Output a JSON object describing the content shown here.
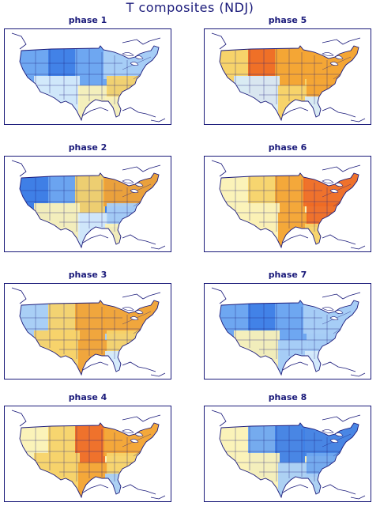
{
  "title": "T composites (NDJ)",
  "palette": {
    "deep_blue": "#3f7fe6",
    "blue": "#6ea6f0",
    "light_blue": "#a9cff5",
    "pale_blue": "#d7ecfb",
    "pale_yellow": "#fbf2b8",
    "yellow": "#f7d36a",
    "orange": "#f3a333",
    "red_orange": "#ee6a24",
    "line": "#1a1a7a"
  },
  "panels": [
    {
      "label": "phase 1",
      "pattern": [
        "blue",
        "deep_blue",
        "blue",
        "light_blue",
        "pale_blue",
        "pale_yellow",
        "yellow",
        "pale_yellow"
      ]
    },
    {
      "label": "phase 2",
      "pattern": [
        "deep_blue",
        "blue",
        "yellow",
        "orange",
        "pale_yellow",
        "pale_blue",
        "light_blue",
        "pale_yellow"
      ]
    },
    {
      "label": "phase 3",
      "pattern": [
        "light_blue",
        "yellow",
        "orange",
        "orange",
        "yellow",
        "orange",
        "yellow",
        "pale_blue"
      ]
    },
    {
      "label": "phase 4",
      "pattern": [
        "pale_yellow",
        "yellow",
        "red_orange",
        "orange",
        "yellow",
        "orange",
        "yellow",
        "light_blue"
      ]
    },
    {
      "label": "phase 5",
      "pattern": [
        "yellow",
        "red_orange",
        "orange",
        "orange",
        "pale_blue",
        "yellow",
        "orange",
        "pale_blue"
      ]
    },
    {
      "label": "phase 6",
      "pattern": [
        "pale_yellow",
        "yellow",
        "orange",
        "red_orange",
        "pale_yellow",
        "orange",
        "red_orange",
        "yellow"
      ]
    },
    {
      "label": "phase 7",
      "pattern": [
        "blue",
        "deep_blue",
        "blue",
        "light_blue",
        "pale_yellow",
        "light_blue",
        "light_blue",
        "pale_blue"
      ]
    },
    {
      "label": "phase 8",
      "pattern": [
        "pale_yellow",
        "blue",
        "deep_blue",
        "deep_blue",
        "pale_yellow",
        "light_blue",
        "blue",
        "light_blue"
      ]
    }
  ]
}
